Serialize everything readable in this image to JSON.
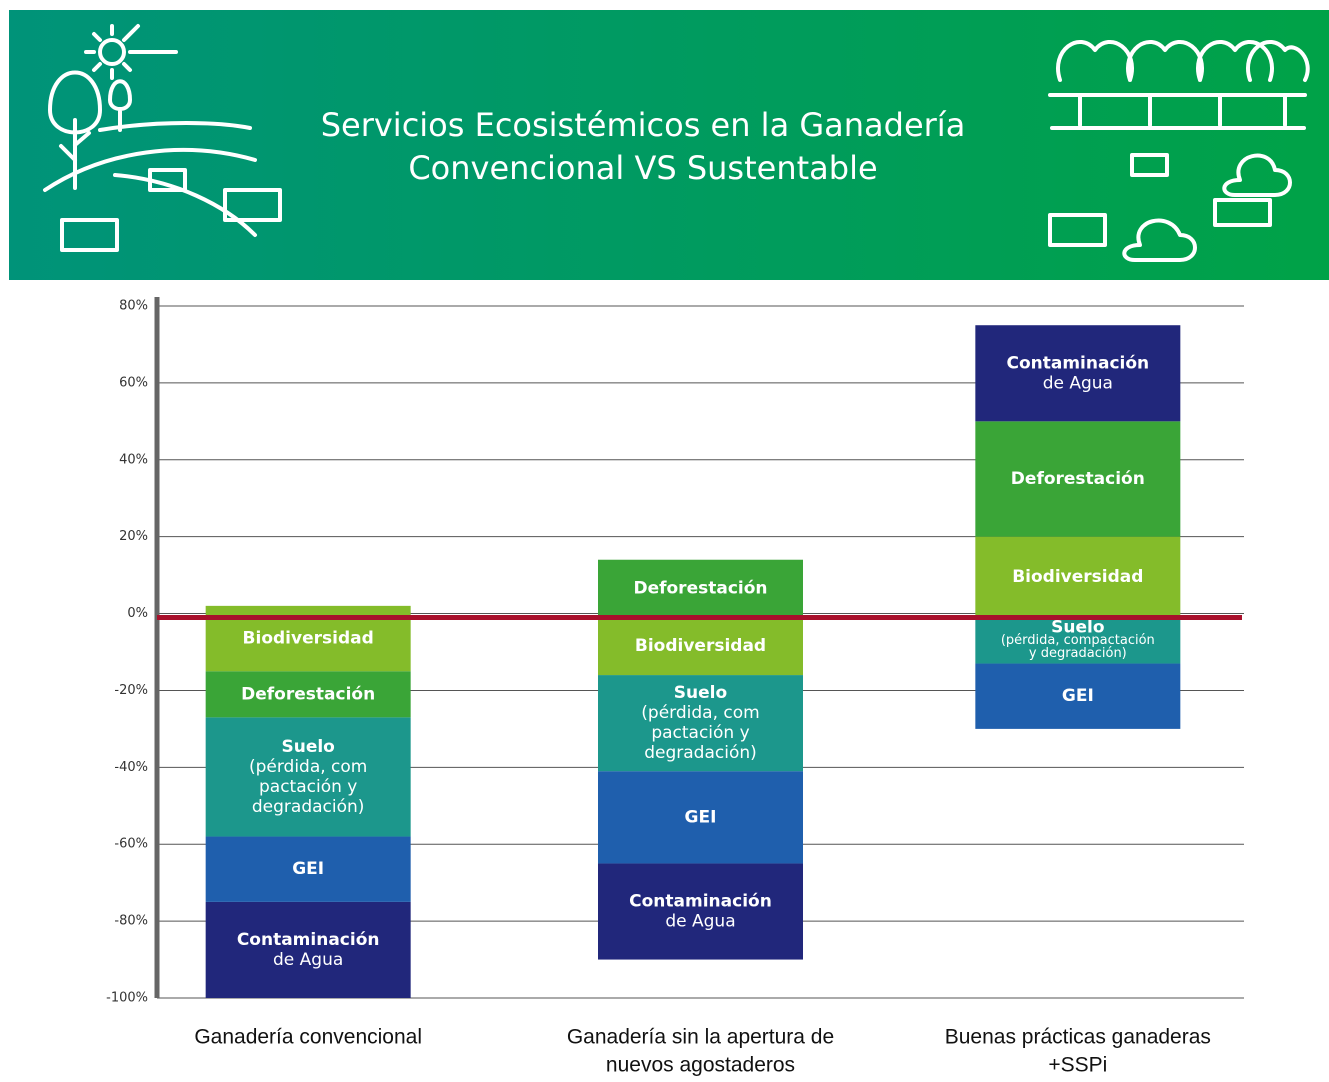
{
  "chart_data": {
    "type": "floating-stacked-bar",
    "title": [
      "Servicios Ecosistémicos en la Ganadería",
      "Convencional VS Sustentable"
    ],
    "ylim": [
      -100,
      80
    ],
    "yticks": [
      {
        "value": -100,
        "label": "-100%"
      },
      {
        "value": -80,
        "label": "-80%"
      },
      {
        "value": -60,
        "label": "-60%"
      },
      {
        "value": -40,
        "label": "-40%"
      },
      {
        "value": -20,
        "label": "-20%"
      },
      {
        "value": 0,
        "label": "0%"
      },
      {
        "value": 20,
        "label": "20%"
      },
      {
        "value": 40,
        "label": "40%"
      },
      {
        "value": 60,
        "label": "60%"
      },
      {
        "value": 80,
        "label": "80%"
      }
    ],
    "grid": true,
    "reference_line": {
      "value": 0,
      "color": "#a8102c"
    },
    "bars": [
      {
        "category": [
          "Ganadería convencional"
        ],
        "base": -100,
        "segments": [
          {
            "label": [
              "Contaminación",
              "de Agua"
            ],
            "value": 25,
            "color": "#21277b"
          },
          {
            "label": [
              "GEI"
            ],
            "value": 17,
            "color": "#1f5fad"
          },
          {
            "label": [
              "Suelo",
              "(pérdida, com",
              "pactación y",
              "degradación)"
            ],
            "value": 31,
            "color": "#1c978c"
          },
          {
            "label": [
              "Deforestación"
            ],
            "value": 12,
            "color": "#3aa537"
          },
          {
            "label": [
              "Biodiversidad"
            ],
            "value": 17,
            "color": "#84bc2a"
          }
        ]
      },
      {
        "category": [
          "Ganadería sin la apertura de",
          "nuevos agostaderos"
        ],
        "base": -90,
        "segments": [
          {
            "label": [
              "Contaminación",
              "de Agua"
            ],
            "value": 25,
            "color": "#21277b"
          },
          {
            "label": [
              "GEI"
            ],
            "value": 24,
            "color": "#1f5fad"
          },
          {
            "label": [
              "Suelo",
              "(pérdida, com",
              "pactación y",
              "degradación)"
            ],
            "value": 25,
            "color": "#1c978c"
          },
          {
            "label": [
              "Biodiversidad"
            ],
            "value": 15,
            "color": "#84bc2a"
          },
          {
            "label": [
              "Deforestación"
            ],
            "value": 15,
            "color": "#3aa537"
          }
        ]
      },
      {
        "category": [
          "Buenas prácticas ganaderas",
          "+SSPi"
        ],
        "base": -30,
        "segments": [
          {
            "label": [
              "GEI"
            ],
            "value": 17,
            "color": "#1f5fad"
          },
          {
            "label": [
              "Suelo",
              "(pérdida, compactación",
              "y degradación)"
            ],
            "value": 12,
            "color": "#1c978c"
          },
          {
            "label": [
              "Biodiversidad"
            ],
            "value": 21,
            "color": "#84bc2a"
          },
          {
            "label": [
              "Deforestación"
            ],
            "value": 30,
            "color": "#3aa537"
          },
          {
            "label": [
              "Contaminación",
              "de Agua"
            ],
            "value": 25,
            "color": "#21277b"
          }
        ]
      }
    ]
  }
}
